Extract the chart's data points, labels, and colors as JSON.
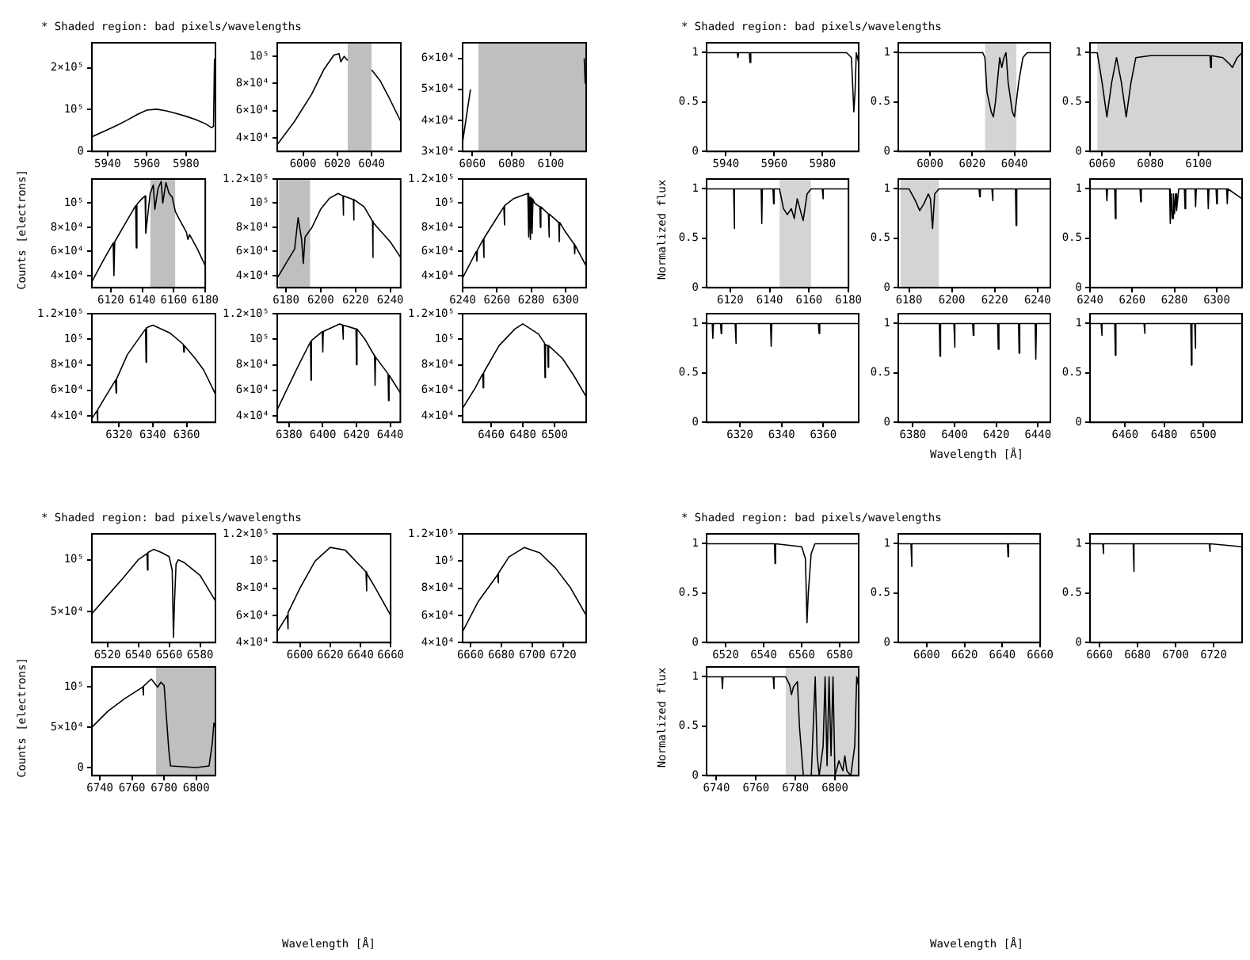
{
  "chart_data": [
    {
      "type": "line",
      "annotations": [
        "* Shaded region: bad pixels/wavelengths"
      ],
      "color": "#000000",
      "xlim": [
        5932,
        5995
      ],
      "xticks": [
        5940,
        5960,
        5980
      ],
      "ylim": [
        0,
        260000
      ],
      "yticks": [
        0,
        {
          "value": 100000,
          "label": "10⁵"
        },
        {
          "value": 200000,
          "label": "2×10⁵"
        }
      ],
      "x": [
        5932,
        5940,
        5945,
        5950,
        5955,
        5960,
        5965,
        5970,
        5975,
        5980,
        5985,
        5990,
        5993,
        5994,
        5994.5,
        5995
      ],
      "values": [
        35000,
        52000,
        63000,
        75000,
        88000,
        99000,
        101000,
        97000,
        91000,
        84000,
        76000,
        66000,
        57000,
        60000,
        220000,
        90000
      ]
    },
    {
      "type": "line",
      "color": "#000000",
      "xlim": [
        5985,
        6057
      ],
      "xticks": [
        6000,
        6020,
        6040
      ],
      "ylim": [
        30000,
        110000
      ],
      "yticks": [
        {
          "value": 40000,
          "label": "4×10⁴"
        },
        {
          "value": 60000,
          "label": "6×10⁴"
        },
        {
          "value": 80000,
          "label": "8×10⁴"
        },
        {
          "value": 100000,
          "label": "10⁵"
        }
      ],
      "bands": [
        {
          "axis": "x",
          "from": 6026,
          "to": 6040,
          "color": "#707070"
        }
      ],
      "x": [
        5985,
        5995,
        6005,
        6012,
        6018,
        6021,
        6022,
        6024,
        6026,
        6027,
        6028,
        6039,
        6040,
        6045,
        6050,
        6057
      ],
      "values": [
        35000,
        52000,
        72000,
        90000,
        101000,
        102000,
        96000,
        100000,
        97000,
        null,
        null,
        null,
        90000,
        82000,
        70000,
        52000
      ]
    },
    {
      "type": "line",
      "color": "#000000",
      "xlim": [
        6055,
        6118
      ],
      "xticks": [
        6060,
        6080,
        6100
      ],
      "ylim": [
        30000,
        65000
      ],
      "yticks": [
        {
          "value": 30000,
          "label": "3×10⁴"
        },
        {
          "value": 40000,
          "label": "4×10⁴"
        },
        {
          "value": 50000,
          "label": "5×10⁴"
        },
        {
          "value": 60000,
          "label": "6×10⁴"
        }
      ],
      "bands": [
        {
          "axis": "x",
          "from": 6063,
          "to": 6118,
          "color": "#707070"
        }
      ],
      "x": [
        6055,
        6059,
        6062,
        6063,
        6117,
        6117.5,
        6118
      ],
      "values": [
        33000,
        50000,
        null,
        null,
        60000,
        52000,
        58000
      ]
    },
    {
      "type": "line",
      "ylabel": "Counts [electrons]",
      "color": "#000000",
      "xlim": [
        6108,
        6180
      ],
      "xticks": [
        6120,
        6140,
        6160,
        6180
      ],
      "ylim": [
        30000,
        120000
      ],
      "yticks": [
        {
          "value": 40000,
          "label": "4×10⁴"
        },
        {
          "value": 60000,
          "label": "6×10⁴"
        },
        {
          "value": 80000,
          "label": "8×10⁴"
        },
        {
          "value": 100000,
          "label": "10⁵"
        }
      ],
      "bands": [
        {
          "axis": "x",
          "from": 6145,
          "to": 6161,
          "color": "#707070"
        }
      ],
      "x": [
        6108,
        6115,
        6121.5,
        6122,
        6122.5,
        6130,
        6135.8,
        6136.2,
        6136.6,
        6140,
        6141.8,
        6142.2,
        6145,
        6147,
        6148,
        6150,
        6152,
        6153,
        6155,
        6157,
        6159,
        6161,
        6163,
        6168,
        6169,
        6170,
        6175,
        6180
      ],
      "values": [
        35000,
        52000,
        67000,
        40000,
        68000,
        85000,
        98000,
        63000,
        99000,
        104000,
        106000,
        75000,
        108000,
        115000,
        95000,
        112000,
        118000,
        100000,
        117000,
        108000,
        105000,
        93000,
        88000,
        76000,
        70000,
        74000,
        62000,
        48000
      ]
    },
    {
      "type": "line",
      "color": "#000000",
      "xlim": [
        6175,
        6246
      ],
      "xticks": [
        6180,
        6200,
        6220,
        6240
      ],
      "ylim": [
        30000,
        120000
      ],
      "yticks": [
        {
          "value": 40000,
          "label": "4×10⁴"
        },
        {
          "value": 60000,
          "label": "6×10⁴"
        },
        {
          "value": 80000,
          "label": "8×10⁴"
        },
        {
          "value": 100000,
          "label": "10⁵"
        },
        {
          "value": 120000,
          "label": "1.2×10⁵"
        }
      ],
      "bands": [
        {
          "axis": "x",
          "from": 6176,
          "to": 6194,
          "color": "#707070"
        }
      ],
      "x": [
        6175,
        6180,
        6185,
        6187,
        6189,
        6190,
        6191,
        6195,
        6200,
        6205,
        6210,
        6212.8,
        6213,
        6213.2,
        6218.8,
        6219,
        6219.2,
        6225,
        6229.8,
        6230,
        6230.2,
        6235,
        6240,
        6246
      ],
      "values": [
        38000,
        50000,
        62000,
        88000,
        70000,
        50000,
        72000,
        80000,
        95000,
        104000,
        108000,
        106000,
        90000,
        106000,
        103000,
        86000,
        103000,
        97000,
        85000,
        55000,
        84000,
        76000,
        68000,
        55000
      ]
    },
    {
      "type": "line",
      "color": "#000000",
      "xlim": [
        6240,
        6312
      ],
      "xticks": [
        6240,
        6260,
        6280,
        6300
      ],
      "ylim": [
        30000,
        120000
      ],
      "yticks": [
        {
          "value": 40000,
          "label": "4×10⁴"
        },
        {
          "value": 60000,
          "label": "6×10⁴"
        },
        {
          "value": 80000,
          "label": "8×10⁴"
        },
        {
          "value": 100000,
          "label": "10⁵"
        },
        {
          "value": 120000,
          "label": "1.2×10⁵"
        }
      ],
      "x": [
        6240,
        6248,
        6248.3,
        6248.6,
        6252,
        6252.3,
        6252.6,
        6260,
        6264,
        6264.3,
        6264.6,
        6270,
        6276,
        6278,
        6278.5,
        6279,
        6279.5,
        6280,
        6280.5,
        6281,
        6282,
        6285,
        6285.3,
        6285.6,
        6290,
        6290.3,
        6290.6,
        6296,
        6296.3,
        6296.6,
        6300,
        6305,
        6305.3,
        6305.6,
        6312
      ],
      "values": [
        38000,
        60000,
        52000,
        61000,
        70000,
        55000,
        71000,
        88000,
        97000,
        82000,
        98000,
        104000,
        107000,
        108000,
        72000,
        105000,
        70000,
        104000,
        75000,
        103000,
        100000,
        97000,
        80000,
        97000,
        91000,
        72000,
        91000,
        84000,
        68000,
        84000,
        76000,
        66000,
        58000,
        65000,
        48000
      ]
    },
    {
      "type": "line",
      "color": "#000000",
      "xlim": [
        6304,
        6377
      ],
      "xticks": [
        6320,
        6340,
        6360
      ],
      "ylim": [
        35000,
        120000
      ],
      "yticks": [
        {
          "value": 40000,
          "label": "4×10⁴"
        },
        {
          "value": 60000,
          "label": "6×10⁴"
        },
        {
          "value": 80000,
          "label": "8×10⁴"
        },
        {
          "value": 100000,
          "label": "10⁵"
        },
        {
          "value": 120000,
          "label": "1.2×10⁵"
        }
      ],
      "x": [
        6304,
        6307,
        6307.3,
        6307.6,
        6312,
        6318,
        6318.3,
        6318.6,
        6325,
        6335.7,
        6336,
        6336.3,
        6340,
        6350,
        6358,
        6358.3,
        6358.6,
        6365,
        6370,
        6377
      ],
      "values": [
        38000,
        44000,
        36000,
        45000,
        55000,
        68000,
        58000,
        69000,
        88000,
        108000,
        82000,
        109000,
        111000,
        105000,
        96000,
        90000,
        95000,
        85000,
        76000,
        57000
      ]
    },
    {
      "type": "line",
      "color": "#000000",
      "xlim": [
        6373,
        6446
      ],
      "xticks": [
        6380,
        6400,
        6420,
        6440
      ],
      "ylim": [
        35000,
        120000
      ],
      "yticks": [
        {
          "value": 40000,
          "label": "4×10⁴"
        },
        {
          "value": 60000,
          "label": "6×10⁴"
        },
        {
          "value": 80000,
          "label": "8×10⁴"
        },
        {
          "value": 100000,
          "label": "10⁵"
        },
        {
          "value": 120000,
          "label": "1.2×10⁵"
        }
      ],
      "x": [
        6373,
        6385,
        6392.7,
        6393,
        6393.3,
        6399.7,
        6400,
        6400.3,
        6410,
        6411.7,
        6412,
        6412.3,
        6419.7,
        6420,
        6420.3,
        6425,
        6430.7,
        6431,
        6431.3,
        6438.7,
        6439,
        6439.3,
        6446
      ],
      "values": [
        45000,
        78000,
        98000,
        68000,
        99000,
        106000,
        90000,
        106000,
        112000,
        111000,
        100000,
        111000,
        108000,
        80000,
        108000,
        100000,
        87000,
        64000,
        86000,
        73000,
        52000,
        72000,
        58000
      ]
    },
    {
      "type": "line",
      "color": "#000000",
      "xlim": [
        6442,
        6520
      ],
      "xticks": [
        6460,
        6480,
        6500
      ],
      "ylim": [
        35000,
        120000
      ],
      "yticks": [
        {
          "value": 40000,
          "label": "4×10⁴"
        },
        {
          "value": 60000,
          "label": "6×10⁴"
        },
        {
          "value": 80000,
          "label": "8×10⁴"
        },
        {
          "value": 100000,
          "label": "10⁵"
        },
        {
          "value": 120000,
          "label": "1.2×10⁵"
        }
      ],
      "x": [
        6442,
        6450,
        6454.7,
        6455,
        6455.3,
        6465,
        6475,
        6480,
        6490,
        6493.7,
        6494,
        6494.3,
        6495.7,
        6496,
        6496.3,
        6505,
        6512,
        6520
      ],
      "values": [
        46000,
        62000,
        73000,
        62000,
        74000,
        95000,
        108000,
        112000,
        104000,
        97000,
        70000,
        96000,
        95000,
        78000,
        95000,
        85000,
        72000,
        55000
      ]
    },
    {
      "type": "line",
      "annotations": [
        "* Shaded region: bad pixels/wavelengths"
      ],
      "color": "#000000",
      "xlim": [
        6510,
        6590
      ],
      "xticks": [
        6520,
        6540,
        6560,
        6580
      ],
      "ylim": [
        20000,
        125000
      ],
      "yticks": [
        {
          "value": 50000,
          "label": "5×10⁴"
        },
        {
          "value": 100000,
          "label": "10⁵"
        }
      ],
      "x": [
        6510,
        6520,
        6530,
        6540,
        6545.7,
        6546,
        6546.3,
        6550,
        6555,
        6560,
        6562,
        6562.8,
        6563.5,
        6564.5,
        6566,
        6570,
        6580,
        6590
      ],
      "values": [
        48000,
        65000,
        82000,
        100000,
        106000,
        90000,
        107000,
        110000,
        107000,
        103000,
        90000,
        25000,
        60000,
        96000,
        100000,
        97000,
        85000,
        60000
      ]
    },
    {
      "type": "line",
      "xlabel": "Wavelength [Å]",
      "color": "#000000",
      "xlim": [
        6585,
        6660
      ],
      "xticks": [
        6600,
        6620,
        6640,
        6660
      ],
      "ylim": [
        40000,
        120000
      ],
      "yticks": [
        {
          "value": 40000,
          "label": "4×10⁴"
        },
        {
          "value": 60000,
          "label": "6×10⁴"
        },
        {
          "value": 80000,
          "label": "8×10⁴"
        },
        {
          "value": 100000,
          "label": "10⁵"
        },
        {
          "value": 120000,
          "label": "1.2×10⁵"
        }
      ],
      "x": [
        6585,
        6591.7,
        6592,
        6592.3,
        6600,
        6610,
        6620,
        6630,
        6643.7,
        6644,
        6644.3,
        6650,
        6660
      ],
      "values": [
        48000,
        60000,
        50000,
        62000,
        80000,
        100000,
        110000,
        108000,
        92000,
        78000,
        91000,
        80000,
        60000
      ]
    },
    {
      "type": "line",
      "color": "#000000",
      "xlim": [
        6655,
        6735
      ],
      "xticks": [
        6660,
        6680,
        6700,
        6720
      ],
      "ylim": [
        40000,
        120000
      ],
      "yticks": [
        {
          "value": 40000,
          "label": "4×10⁴"
        },
        {
          "value": 60000,
          "label": "6×10⁴"
        },
        {
          "value": 80000,
          "label": "8×10⁴"
        },
        {
          "value": 100000,
          "label": "10⁵"
        },
        {
          "value": 120000,
          "label": "1.2×10⁵"
        }
      ],
      "x": [
        6655,
        6665,
        6677.7,
        6678,
        6678.3,
        6685,
        6695,
        6705,
        6715,
        6725,
        6735
      ],
      "values": [
        48000,
        70000,
        90000,
        84000,
        91000,
        103000,
        110000,
        106000,
        95000,
        80000,
        60000
      ]
    },
    {
      "type": "line",
      "ylabel": "Counts [electrons]",
      "color": "#000000",
      "xlim": [
        6735,
        6812
      ],
      "xticks": [
        6740,
        6760,
        6780,
        6800
      ],
      "ylim": [
        -10000,
        125000
      ],
      "yticks": [
        0,
        {
          "value": 50000,
          "label": "5×10⁴"
        },
        {
          "value": 100000,
          "label": "10⁵"
        }
      ],
      "bands": [
        {
          "axis": "x",
          "from": 6775,
          "to": 6812,
          "color": "#707070"
        }
      ],
      "x": [
        6735,
        6745,
        6755,
        6766.7,
        6767,
        6767.3,
        6772,
        6776,
        6778,
        6780,
        6783,
        6784,
        6800,
        6808,
        6810,
        6811,
        6812
      ],
      "values": [
        50000,
        70000,
        85000,
        100000,
        90000,
        101000,
        110000,
        100000,
        106000,
        102000,
        20000,
        2000,
        0,
        2000,
        30000,
        55000,
        50000
      ]
    },
    {
      "type": "line",
      "annotations": [
        "* Shaded region: bad pixels/wavelengths"
      ],
      "color": "#000000",
      "xlim": [
        5932,
        5995
      ],
      "xticks": [
        5940,
        5960,
        5980
      ],
      "ylim": [
        0,
        1.1
      ],
      "yticks": [
        0,
        0.5,
        1
      ],
      "x": [
        5932,
        5944.7,
        5945,
        5945.3,
        5949.7,
        5950,
        5950.3,
        5990,
        5992,
        5993,
        5993.5,
        5994,
        5995
      ],
      "values": [
        1,
        1,
        0.95,
        1,
        1,
        0.9,
        1,
        1,
        0.95,
        0.4,
        0.6,
        1,
        0.9
      ]
    },
    {
      "type": "line",
      "color": "#000000",
      "xlim": [
        5985,
        6057
      ],
      "xticks": [
        6000,
        6020,
        6040
      ],
      "ylim": [
        0,
        1.1
      ],
      "yticks": [
        0,
        0.5,
        1
      ],
      "bands": [
        {
          "axis": "x",
          "from": 6026,
          "to": 6041,
          "color": "#a0a0a0"
        }
      ],
      "x": [
        5985,
        6020,
        6025,
        6026,
        6027,
        6029,
        6030,
        6031,
        6033,
        6034,
        6035,
        6036,
        6037,
        6039,
        6040,
        6042,
        6044,
        6046,
        6057
      ],
      "values": [
        1,
        1,
        1,
        0.95,
        0.6,
        0.4,
        0.35,
        0.5,
        0.95,
        0.85,
        0.95,
        1,
        0.7,
        0.4,
        0.35,
        0.7,
        0.95,
        1,
        1
      ]
    },
    {
      "type": "line",
      "color": "#000000",
      "xlim": [
        6055,
        6118
      ],
      "xticks": [
        6060,
        6080,
        6100
      ],
      "ylim": [
        0,
        1.1
      ],
      "yticks": [
        0,
        0.5,
        1
      ],
      "bands": [
        {
          "axis": "x",
          "from": 6058,
          "to": 6118,
          "color": "#a0a0a0"
        }
      ],
      "x": [
        6055,
        6058,
        6060,
        6062,
        6064,
        6066,
        6068,
        6070,
        6072,
        6074,
        6080,
        6090,
        6104.7,
        6105,
        6105.3,
        6110,
        6113,
        6114,
        6116,
        6118
      ],
      "values": [
        1,
        1,
        0.7,
        0.35,
        0.7,
        0.95,
        0.7,
        0.35,
        0.7,
        0.95,
        0.97,
        0.97,
        0.97,
        0.85,
        0.97,
        0.95,
        0.88,
        0.85,
        0.95,
        1
      ]
    },
    {
      "type": "line",
      "ylabel": "Normalized flux",
      "color": "#000000",
      "xlim": [
        6108,
        6180
      ],
      "xticks": [
        6120,
        6140,
        6160,
        6180
      ],
      "ylim": [
        0,
        1.1
      ],
      "yticks": [
        0,
        0.5,
        1
      ],
      "bands": [
        {
          "axis": "x",
          "from": 6145,
          "to": 6161,
          "color": "#a0a0a0"
        }
      ],
      "x": [
        6108,
        6121.7,
        6122,
        6122.3,
        6135.7,
        6136,
        6136.3,
        6141.7,
        6142,
        6142.3,
        6145,
        6147,
        6149,
        6151,
        6152.5,
        6154,
        6156,
        6157,
        6159,
        6161,
        6166.7,
        6167,
        6167.3,
        6180
      ],
      "values": [
        1,
        1,
        0.6,
        1,
        1,
        0.65,
        1,
        1,
        0.85,
        1,
        1,
        0.8,
        0.74,
        0.8,
        0.7,
        0.9,
        0.75,
        0.68,
        0.95,
        1,
        1,
        0.9,
        1,
        1
      ]
    },
    {
      "type": "line",
      "color": "#000000",
      "xlim": [
        6175,
        6246
      ],
      "xticks": [
        6180,
        6200,
        6220,
        6240
      ],
      "ylim": [
        0,
        1.1
      ],
      "yticks": [
        0,
        0.5,
        1
      ],
      "bands": [
        {
          "axis": "x",
          "from": 6176,
          "to": 6194,
          "color": "#a0a0a0"
        }
      ],
      "x": [
        6175,
        6180,
        6183,
        6185,
        6187,
        6189,
        6190,
        6191,
        6192,
        6194,
        6212.7,
        6213,
        6213.3,
        6218.7,
        6219,
        6219.3,
        6229.7,
        6230,
        6230.3,
        6246
      ],
      "values": [
        1,
        1,
        0.88,
        0.78,
        0.85,
        0.95,
        0.9,
        0.6,
        0.95,
        1,
        1,
        0.92,
        1,
        1,
        0.88,
        1,
        1,
        0.63,
        1,
        1
      ]
    },
    {
      "type": "line",
      "color": "#000000",
      "xlim": [
        6240,
        6312
      ],
      "xticks": [
        6240,
        6260,
        6280,
        6300
      ],
      "ylim": [
        0,
        1.1
      ],
      "yticks": [
        0,
        0.5,
        1
      ],
      "x": [
        6240,
        6247.7,
        6248,
        6248.3,
        6251.7,
        6252,
        6252.3,
        6263.7,
        6264,
        6264.3,
        6277.7,
        6278,
        6278.5,
        6279,
        6279.5,
        6280,
        6280.5,
        6281,
        6282,
        6284.7,
        6285,
        6285.3,
        6289.7,
        6290,
        6290.3,
        6295.7,
        6296,
        6296.3,
        6299.7,
        6300,
        6300.3,
        6304.7,
        6305,
        6305.3,
        6312
      ],
      "values": [
        1,
        1,
        0.88,
        1,
        1,
        0.7,
        1,
        1,
        0.87,
        1,
        1,
        0.65,
        0.95,
        0.7,
        0.95,
        0.75,
        0.95,
        0.78,
        1,
        1,
        0.8,
        1,
        1,
        0.82,
        1,
        1,
        0.8,
        1,
        1,
        0.85,
        1,
        1,
        0.85,
        1,
        0.9
      ]
    },
    {
      "type": "line",
      "color": "#000000",
      "xlim": [
        6304,
        6377
      ],
      "xticks": [
        6320,
        6340,
        6360
      ],
      "ylim": [
        0,
        1.1
      ],
      "yticks": [
        0,
        0.5,
        1
      ],
      "x": [
        6304,
        6306.7,
        6307,
        6307.3,
        6310.7,
        6311,
        6311.3,
        6317.7,
        6318,
        6318.3,
        6334.7,
        6335,
        6335.3,
        6357.7,
        6358,
        6358.3,
        6377
      ],
      "values": [
        1,
        1,
        0.85,
        1,
        1,
        0.9,
        1,
        1,
        0.8,
        1,
        1,
        0.77,
        1,
        1,
        0.9,
        1,
        1
      ]
    },
    {
      "type": "line",
      "xlabel": "Wavelength [Å]",
      "color": "#000000",
      "xlim": [
        6373,
        6446
      ],
      "xticks": [
        6380,
        6400,
        6420,
        6440
      ],
      "ylim": [
        0,
        1.1
      ],
      "yticks": [
        0,
        0.5,
        1
      ],
      "x": [
        6373,
        6392.7,
        6393,
        6393.3,
        6399.7,
        6400,
        6400.3,
        6408.7,
        6409,
        6409.3,
        6420.7,
        6421,
        6421.3,
        6430.7,
        6431,
        6431.3,
        6438.7,
        6439,
        6439.3,
        6446
      ],
      "values": [
        1,
        1,
        0.67,
        1,
        1,
        0.76,
        1,
        1,
        0.88,
        1,
        1,
        0.74,
        1,
        1,
        0.7,
        1,
        1,
        0.64,
        1,
        1
      ]
    },
    {
      "type": "line",
      "color": "#000000",
      "xlim": [
        6442,
        6520
      ],
      "xticks": [
        6460,
        6480,
        6500
      ],
      "ylim": [
        0,
        1.1
      ],
      "yticks": [
        0,
        0.5,
        1
      ],
      "x": [
        6442,
        6447.7,
        6448,
        6448.3,
        6454.7,
        6455,
        6455.3,
        6469.7,
        6470,
        6470.3,
        6493.7,
        6494,
        6494.3,
        6495.7,
        6496,
        6496.3,
        6520
      ],
      "values": [
        1,
        1,
        0.88,
        1,
        1,
        0.68,
        1,
        1,
        0.9,
        1,
        1,
        0.58,
        1,
        1,
        0.75,
        1,
        1
      ]
    },
    {
      "type": "line",
      "annotations": [
        "* Shaded region: bad pixels/wavelengths"
      ],
      "color": "#000000",
      "xlim": [
        6510,
        6590
      ],
      "xticks": [
        6520,
        6540,
        6560,
        6580
      ],
      "ylim": [
        0,
        1.1
      ],
      "yticks": [
        0,
        0.5,
        1
      ],
      "x": [
        6510,
        6545.7,
        6546,
        6546.3,
        6560,
        6562,
        6562.8,
        6563.5,
        6565,
        6567,
        6590
      ],
      "values": [
        1,
        1,
        0.8,
        1,
        0.97,
        0.85,
        0.2,
        0.5,
        0.9,
        1,
        1
      ]
    },
    {
      "type": "line",
      "xlabel": "Wavelength [Å]",
      "color": "#000000",
      "xlim": [
        6585,
        6660
      ],
      "xticks": [
        6600,
        6620,
        6640,
        6660
      ],
      "ylim": [
        0,
        1.1
      ],
      "yticks": [
        0,
        0.5,
        1
      ],
      "x": [
        6585,
        6591.7,
        6592,
        6592.3,
        6642.7,
        6643,
        6643.3,
        6660
      ],
      "values": [
        1,
        1,
        0.77,
        1,
        1,
        0.87,
        1,
        1
      ]
    },
    {
      "type": "line",
      "color": "#000000",
      "xlim": [
        6655,
        6735
      ],
      "xticks": [
        6660,
        6680,
        6700,
        6720
      ],
      "ylim": [
        0,
        1.1
      ],
      "yticks": [
        0,
        0.5,
        1
      ],
      "x": [
        6655,
        6661.7,
        6662,
        6662.3,
        6677.7,
        6678,
        6678.3,
        6717.7,
        6718,
        6718.3,
        6735
      ],
      "values": [
        1,
        1,
        0.9,
        1,
        1,
        0.72,
        1,
        1,
        0.92,
        1,
        0.97
      ]
    },
    {
      "type": "line",
      "ylabel": "Normalized flux",
      "color": "#000000",
      "xlim": [
        6735,
        6812
      ],
      "xticks": [
        6740,
        6760,
        6780,
        6800
      ],
      "ylim": [
        0,
        1.1
      ],
      "yticks": [
        0,
        0.5,
        1
      ],
      "bands": [
        {
          "axis": "x",
          "from": 6775,
          "to": 6812,
          "color": "#a0a0a0"
        }
      ],
      "x": [
        6735,
        6742.7,
        6743,
        6743.3,
        6768.7,
        6769,
        6769.3,
        6775,
        6777,
        6778,
        6779,
        6781,
        6782,
        6784,
        6788,
        6790,
        6791,
        6792,
        6794,
        6795,
        6796,
        6797,
        6798,
        6799,
        6800,
        6802,
        6804,
        6805,
        6806,
        6808,
        6810,
        6811,
        6812
      ],
      "values": [
        1,
        1,
        0.88,
        1,
        1,
        0.88,
        1,
        1,
        0.92,
        0.82,
        0.9,
        0.95,
        0.5,
        0,
        0,
        1,
        0.2,
        0,
        0.3,
        1,
        0.1,
        1,
        0.2,
        1,
        0,
        0.15,
        0.05,
        0.2,
        0.05,
        0,
        0.3,
        1,
        0.9
      ]
    }
  ]
}
